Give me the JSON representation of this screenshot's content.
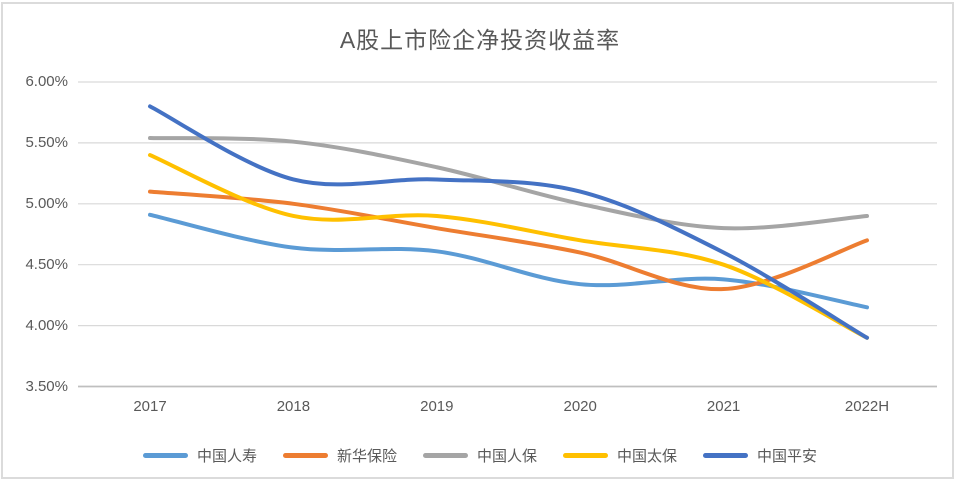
{
  "window": {
    "background": "#ffffff",
    "border_color": "#dbdbdb"
  },
  "chart_data": {
    "type": "line",
    "title": "A股上市险企净投资收益率",
    "smooth": true,
    "grid": true,
    "legend_position": "bottom",
    "categories": [
      "2017",
      "2018",
      "2019",
      "2020",
      "2021",
      "2022H"
    ],
    "series": [
      {
        "name": "中国人寿",
        "color": "#5B9BD5",
        "values": [
          4.91,
          4.64,
          4.61,
          4.34,
          4.38,
          4.15
        ]
      },
      {
        "name": "新华保险",
        "color": "#ED7D31",
        "values": [
          5.1,
          5.0,
          4.8,
          4.6,
          4.3,
          4.7
        ]
      },
      {
        "name": "中国人保",
        "color": "#A5A5A5",
        "values": [
          5.54,
          5.51,
          5.3,
          5.0,
          4.8,
          4.9
        ]
      },
      {
        "name": "中国太保",
        "color": "#FFC000",
        "values": [
          5.4,
          4.9,
          4.9,
          4.7,
          4.5,
          3.9
        ]
      },
      {
        "name": "中国平安",
        "color": "#4472C4",
        "values": [
          5.8,
          5.2,
          5.2,
          5.1,
          4.6,
          3.9
        ]
      }
    ],
    "y_axis": {
      "min": 3.5,
      "max": 6.0,
      "step": 0.5,
      "tick_labels": [
        "6.00%",
        "5.50%",
        "5.00%",
        "4.50%",
        "4.00%",
        "3.50%"
      ],
      "format": "percent"
    },
    "colors": {
      "gridline": "#d9d9d9",
      "axis_line": "#bfbfbf",
      "text": "#595959"
    }
  }
}
